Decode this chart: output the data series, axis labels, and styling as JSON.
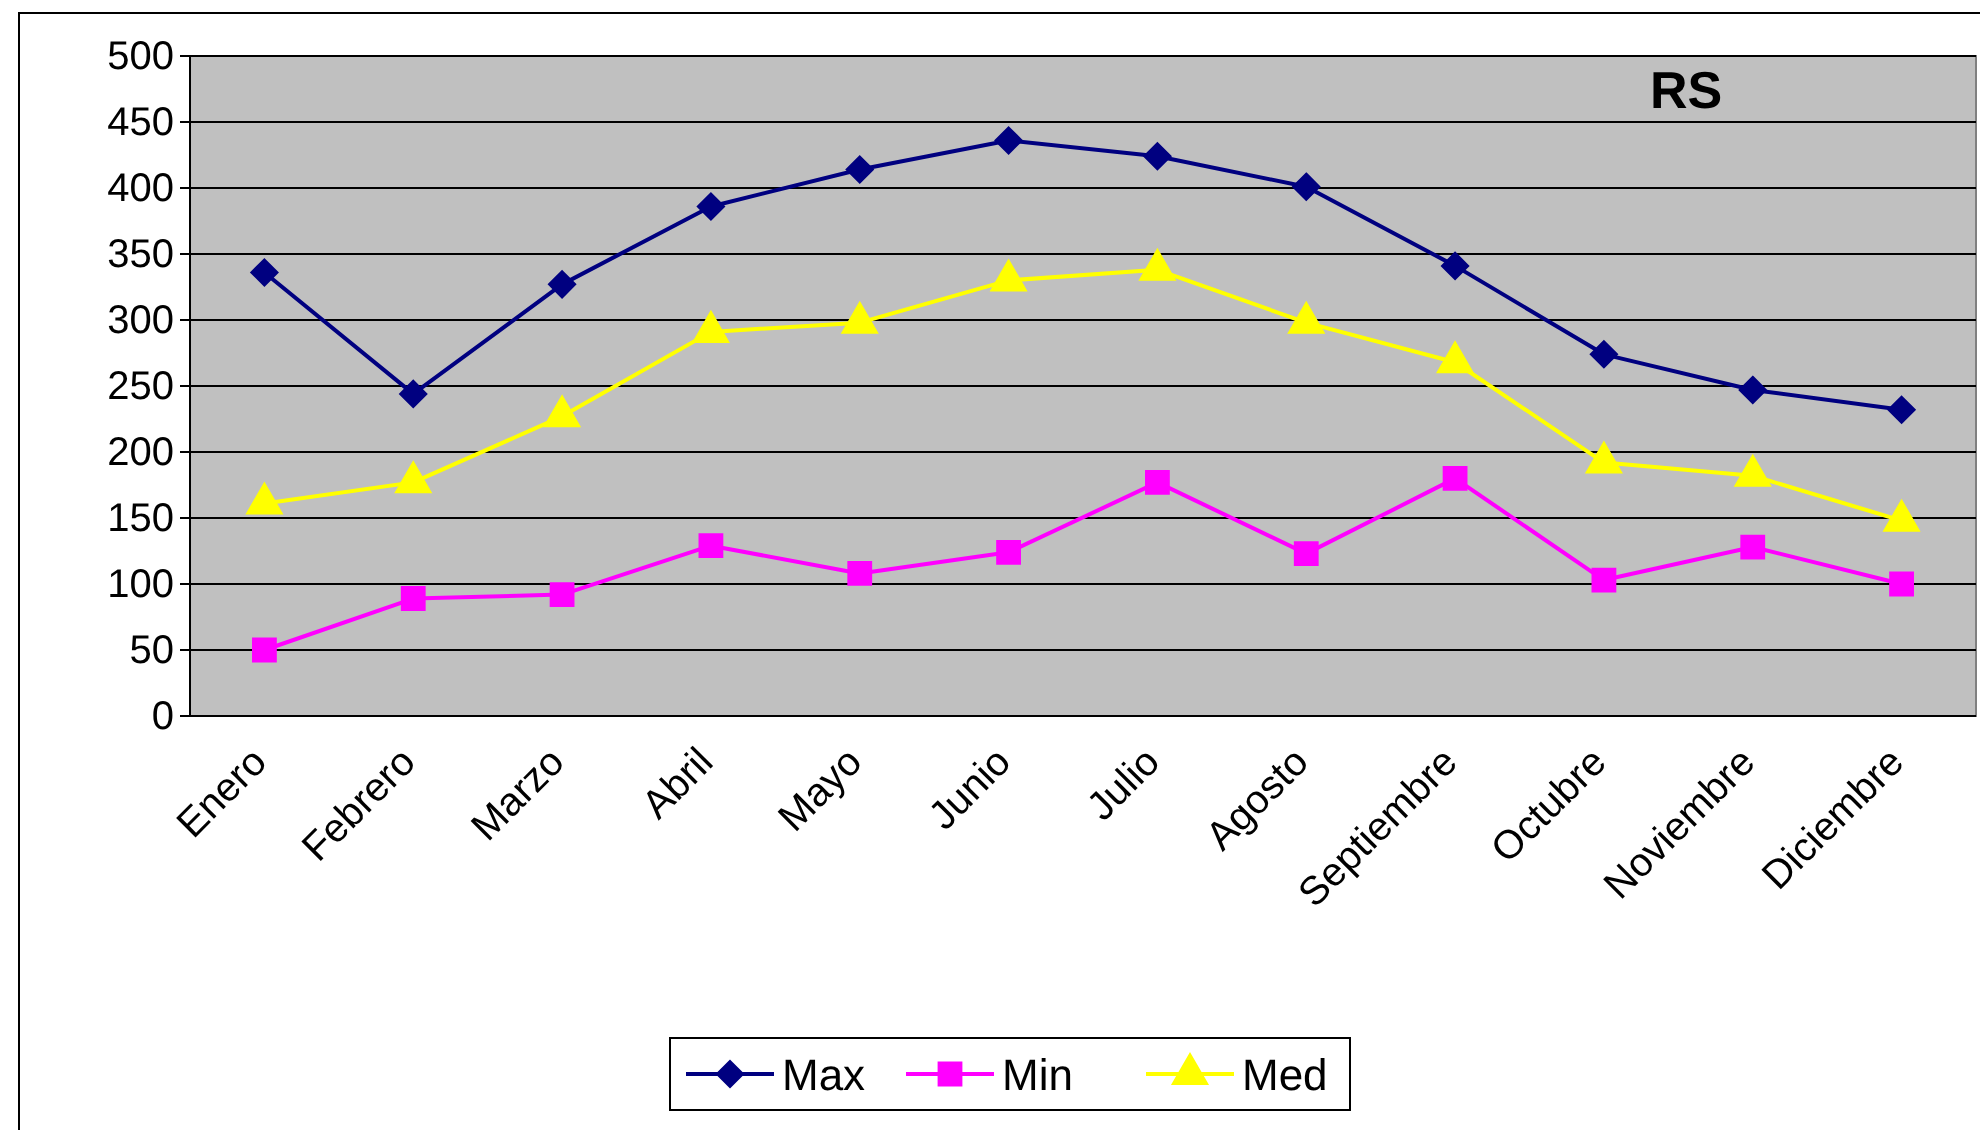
{
  "chart_data": {
    "type": "line",
    "title": "RS",
    "categories": [
      "Enero",
      "Febrero",
      "Marzo",
      "Abril",
      "Mayo",
      "Junio",
      "Julio",
      "Agosto",
      "Septiembre",
      "Octubre",
      "Noviembre",
      "Diciembre"
    ],
    "series": [
      {
        "name": "Max",
        "color": "#000080",
        "marker": "diamond",
        "values": [
          336,
          244,
          327,
          386,
          414,
          436,
          424,
          401,
          341,
          274,
          247,
          232
        ]
      },
      {
        "name": "Min",
        "color": "#ff00ff",
        "marker": "square",
        "values": [
          50,
          89,
          92,
          129,
          108,
          124,
          177,
          123,
          180,
          103,
          128,
          100
        ]
      },
      {
        "name": "Med",
        "color": "#ffff00",
        "marker": "triangle",
        "values": [
          161,
          177,
          227,
          291,
          298,
          330,
          338,
          298,
          268,
          192,
          182,
          148
        ]
      }
    ],
    "ylim": [
      0,
      500
    ],
    "yticks": [
      0,
      50,
      100,
      150,
      200,
      250,
      300,
      350,
      400,
      450,
      500
    ],
    "grid": "y",
    "legend": "bottom"
  }
}
